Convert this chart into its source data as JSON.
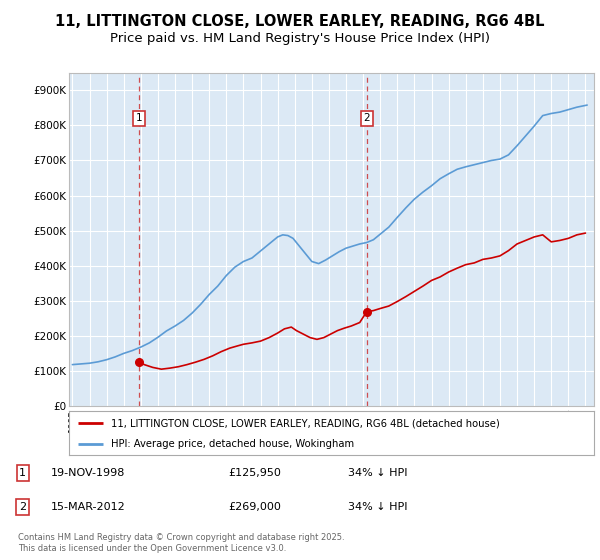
{
  "title_line1": "11, LITTINGTON CLOSE, LOWER EARLEY, READING, RG6 4BL",
  "title_line2": "Price paid vs. HM Land Registry's House Price Index (HPI)",
  "legend_label_red": "11, LITTINGTON CLOSE, LOWER EARLEY, READING, RG6 4BL (detached house)",
  "legend_label_blue": "HPI: Average price, detached house, Wokingham",
  "footnote": "Contains HM Land Registry data © Crown copyright and database right 2025.\nThis data is licensed under the Open Government Licence v3.0.",
  "marker1_date": "19-NOV-1998",
  "marker1_price": "£125,950",
  "marker1_hpi": "34% ↓ HPI",
  "marker2_date": "15-MAR-2012",
  "marker2_price": "£269,000",
  "marker2_hpi": "34% ↓ HPI",
  "ylim": [
    0,
    950000
  ],
  "yticks": [
    0,
    100000,
    200000,
    300000,
    400000,
    500000,
    600000,
    700000,
    800000,
    900000
  ],
  "ytick_labels": [
    "£0",
    "£100K",
    "£200K",
    "£300K",
    "£400K",
    "£500K",
    "£600K",
    "£700K",
    "£800K",
    "£900K"
  ],
  "background_color": "#dce9f5",
  "grid_color": "#ffffff",
  "red_color": "#cc0000",
  "blue_color": "#5b9bd5",
  "marker_box_color": "#cc3333",
  "title_fontsize": 10.5,
  "subtitle_fontsize": 9.5,
  "red_x": [
    1998.88,
    1999.2,
    1999.7,
    2000.2,
    2000.7,
    2001.2,
    2001.7,
    2002.2,
    2002.7,
    2003.2,
    2003.7,
    2004.2,
    2004.7,
    2005.0,
    2005.5,
    2006.0,
    2006.5,
    2007.0,
    2007.4,
    2007.8,
    2008.1,
    2008.5,
    2008.9,
    2009.3,
    2009.7,
    2010.1,
    2010.5,
    2010.9,
    2011.3,
    2011.8,
    2012.21,
    2012.6,
    2013.0,
    2013.5,
    2014.0,
    2014.5,
    2015.0,
    2015.5,
    2016.0,
    2016.5,
    2017.0,
    2017.5,
    2018.0,
    2018.5,
    2019.0,
    2019.5,
    2020.0,
    2020.5,
    2021.0,
    2021.5,
    2022.0,
    2022.5,
    2023.0,
    2023.5,
    2024.0,
    2024.5,
    2025.0
  ],
  "red_y": [
    125950,
    118000,
    110000,
    105000,
    108000,
    112000,
    118000,
    125000,
    133000,
    143000,
    155000,
    165000,
    172000,
    176000,
    180000,
    185000,
    195000,
    208000,
    220000,
    225000,
    215000,
    205000,
    195000,
    190000,
    195000,
    205000,
    215000,
    222000,
    228000,
    238000,
    269000,
    272000,
    278000,
    285000,
    298000,
    312000,
    327000,
    342000,
    358000,
    368000,
    382000,
    393000,
    403000,
    408000,
    418000,
    422000,
    428000,
    443000,
    462000,
    472000,
    482000,
    488000,
    468000,
    472000,
    478000,
    488000,
    493000
  ],
  "blue_x": [
    1995.0,
    1995.5,
    1996.0,
    1996.5,
    1997.0,
    1997.5,
    1998.0,
    1998.5,
    1999.0,
    1999.5,
    2000.0,
    2000.5,
    2001.0,
    2001.5,
    2002.0,
    2002.5,
    2003.0,
    2003.5,
    2004.0,
    2004.5,
    2005.0,
    2005.5,
    2006.0,
    2006.5,
    2007.0,
    2007.3,
    2007.6,
    2007.9,
    2008.2,
    2008.6,
    2009.0,
    2009.4,
    2009.8,
    2010.2,
    2010.6,
    2011.0,
    2011.4,
    2011.8,
    2012.2,
    2012.6,
    2013.0,
    2013.5,
    2014.0,
    2014.5,
    2015.0,
    2015.5,
    2016.0,
    2016.5,
    2017.0,
    2017.5,
    2018.0,
    2018.5,
    2019.0,
    2019.5,
    2020.0,
    2020.5,
    2021.0,
    2021.5,
    2022.0,
    2022.5,
    2023.0,
    2023.5,
    2024.0,
    2024.5,
    2025.1
  ],
  "blue_y": [
    118000,
    120000,
    122000,
    126000,
    132000,
    140000,
    150000,
    158000,
    168000,
    180000,
    196000,
    214000,
    228000,
    244000,
    265000,
    290000,
    318000,
    342000,
    372000,
    396000,
    412000,
    422000,
    442000,
    462000,
    482000,
    488000,
    486000,
    478000,
    460000,
    436000,
    412000,
    406000,
    416000,
    428000,
    440000,
    450000,
    456000,
    462000,
    466000,
    474000,
    490000,
    510000,
    538000,
    565000,
    590000,
    610000,
    628000,
    648000,
    662000,
    675000,
    682000,
    688000,
    694000,
    700000,
    704000,
    716000,
    742000,
    770000,
    798000,
    828000,
    834000,
    838000,
    845000,
    852000,
    858000
  ],
  "marker1_x": 1998.88,
  "marker1_y": 125950,
  "marker2_x": 2012.21,
  "marker2_y": 269000,
  "xmin": 1994.8,
  "xmax": 2025.5
}
